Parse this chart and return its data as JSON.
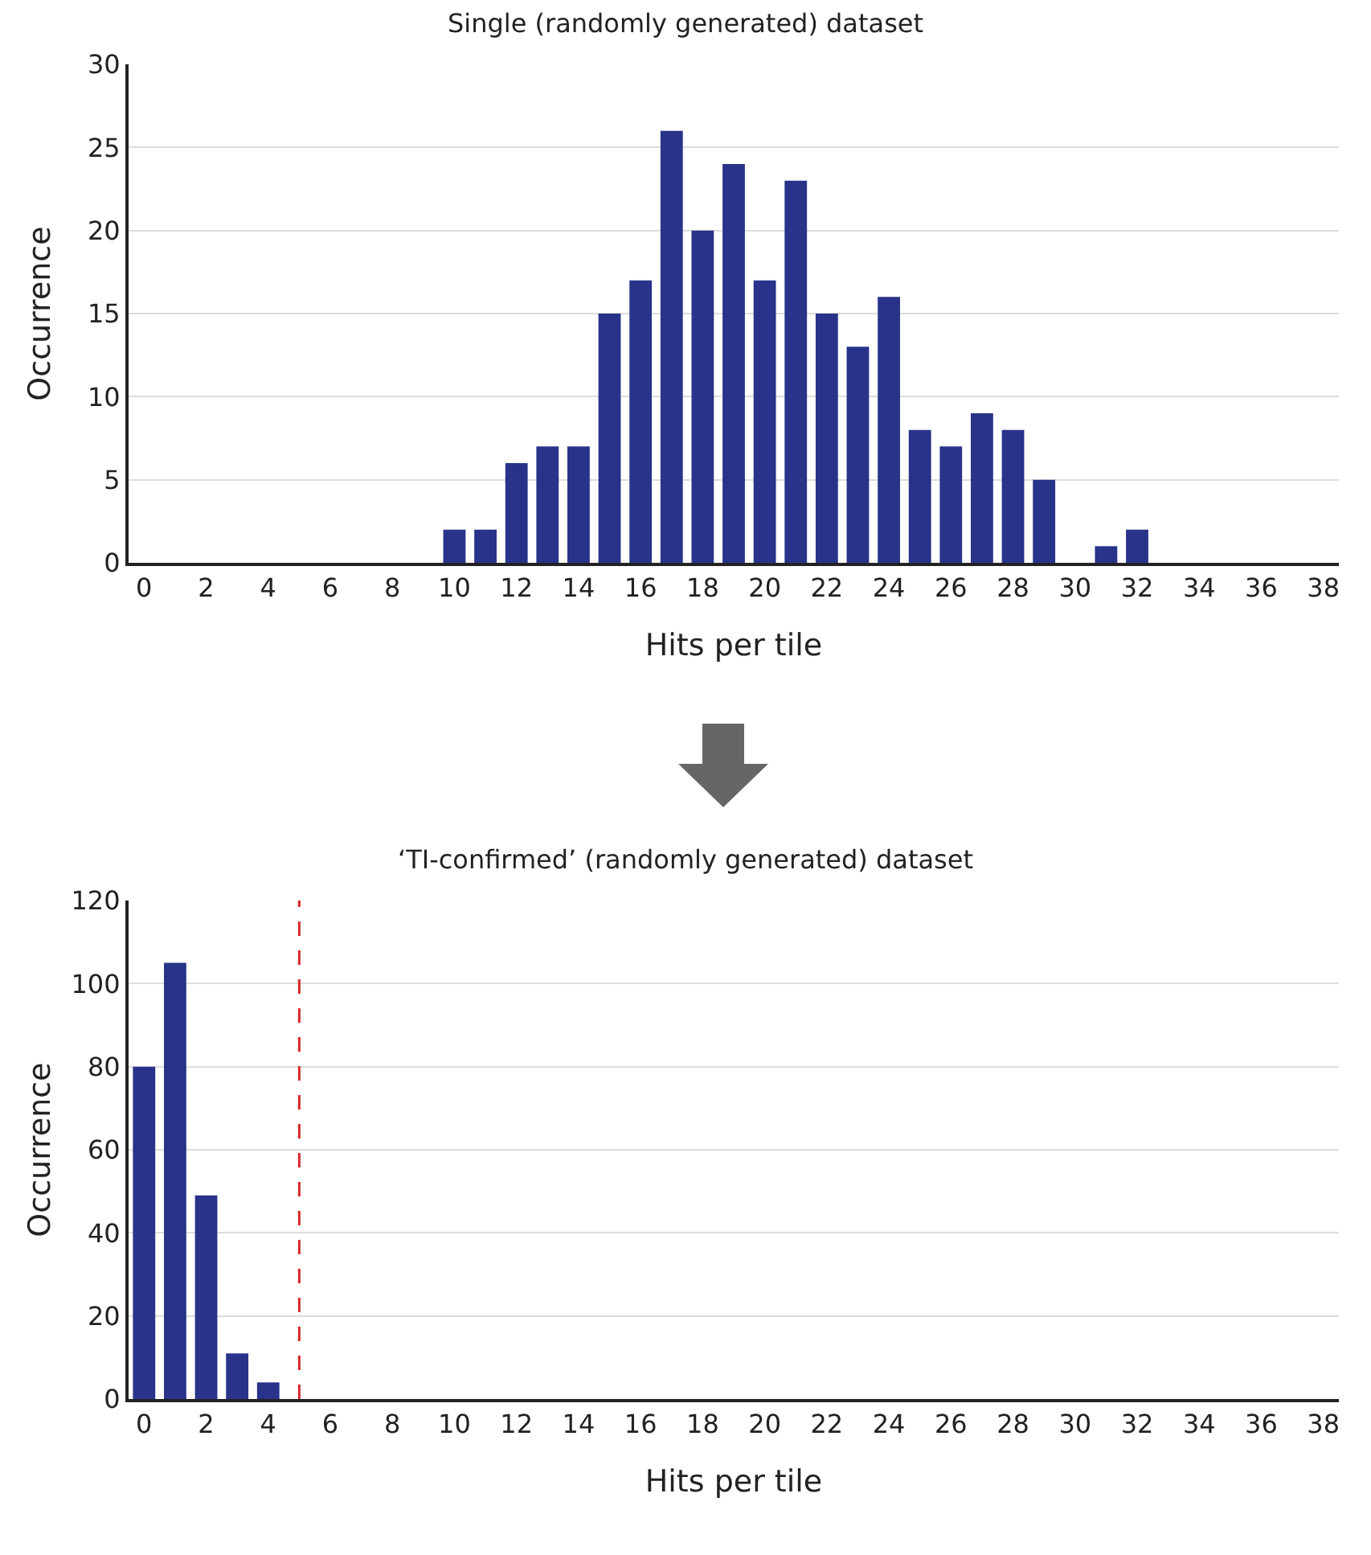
{
  "chart_data": [
    {
      "type": "bar",
      "title": "Single (randomly generated) dataset",
      "xlabel": "Hits per tile",
      "ylabel": "Occurrence",
      "x": [
        0,
        1,
        2,
        3,
        4,
        5,
        6,
        7,
        8,
        9,
        10,
        11,
        12,
        13,
        14,
        15,
        16,
        17,
        18,
        19,
        20,
        21,
        22,
        23,
        24,
        25,
        26,
        27,
        28,
        29,
        30,
        31,
        32,
        33,
        34,
        35,
        36,
        37,
        38
      ],
      "series": [
        {
          "color": "#283389",
          "values": [
            0,
            0,
            0,
            0,
            0,
            0,
            0,
            0,
            0,
            0,
            2,
            2,
            6,
            7,
            7,
            15,
            17,
            26,
            20,
            24,
            17,
            23,
            15,
            13,
            16,
            8,
            7,
            9,
            8,
            5,
            0,
            1,
            2,
            0,
            0,
            0,
            0,
            0,
            0
          ]
        }
      ],
      "xlim": [
        -0.5,
        38.5
      ],
      "xticks": [
        0,
        2,
        4,
        6,
        8,
        10,
        12,
        14,
        16,
        18,
        20,
        22,
        24,
        26,
        28,
        30,
        32,
        34,
        36,
        38
      ],
      "ylim": [
        0,
        30
      ],
      "yticks": [
        0,
        5,
        10,
        15,
        20,
        25,
        30
      ],
      "grid": "y"
    },
    {
      "type": "bar",
      "title": "‘TI-confirmed’ (randomly generated) dataset",
      "xlabel": "Hits per tile",
      "ylabel": "Occurrence",
      "x": [
        0,
        1,
        2,
        3,
        4,
        5,
        6,
        7,
        8,
        9,
        10,
        11,
        12,
        13,
        14,
        15,
        16,
        17,
        18,
        19,
        20,
        21,
        22,
        23,
        24,
        25,
        26,
        27,
        28,
        29,
        30,
        31,
        32,
        33,
        34,
        35,
        36,
        37,
        38
      ],
      "series": [
        {
          "color": "#283389",
          "values": [
            80,
            105,
            49,
            11,
            4,
            0,
            0,
            0,
            0,
            0,
            0,
            0,
            0,
            0,
            0,
            0,
            0,
            0,
            0,
            0,
            0,
            0,
            0,
            0,
            0,
            0,
            0,
            0,
            0,
            0,
            0,
            0,
            0,
            0,
            0,
            0,
            0,
            0,
            0
          ]
        }
      ],
      "xlim": [
        -0.5,
        38.5
      ],
      "xticks": [
        0,
        2,
        4,
        6,
        8,
        10,
        12,
        14,
        16,
        18,
        20,
        22,
        24,
        26,
        28,
        30,
        32,
        34,
        36,
        38
      ],
      "ylim": [
        0,
        120
      ],
      "yticks": [
        0,
        20,
        40,
        60,
        80,
        100,
        120
      ],
      "grid": "y",
      "ref_lines": [
        {
          "axis": "x",
          "value": 5,
          "color": "#d62728",
          "line_style": "dashed"
        }
      ]
    }
  ]
}
